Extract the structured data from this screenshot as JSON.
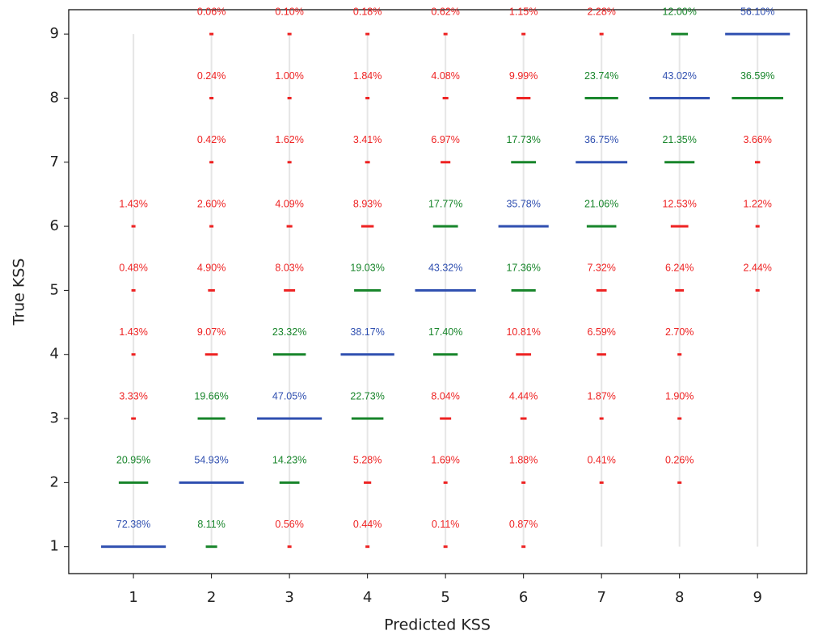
{
  "chart_data": {
    "type": "confusion-bars",
    "x_label": "Predicted KSS",
    "y_label": "True KSS",
    "xlim": [
      0.17,
      9.63
    ],
    "ylim": [
      0.58,
      9.38
    ],
    "xticks": [
      1,
      2,
      3,
      4,
      5,
      6,
      7,
      8,
      9
    ],
    "yticks": [
      1,
      2,
      3,
      4,
      5,
      6,
      7,
      8,
      9
    ],
    "y": [
      1,
      2,
      3,
      4,
      5,
      6,
      7,
      8,
      9
    ],
    "colors": {
      "diagonal": "#2f4fb0",
      "adjacent": "#17852a",
      "other": "#ee2222"
    },
    "guide_color": "#e6e6e6",
    "series": [
      {
        "x": 1,
        "values": [
          72.38,
          20.95,
          3.33,
          1.43,
          0.48,
          1.43,
          null,
          null,
          null
        ],
        "value_labels": [
          "72.38%",
          "20.95%",
          "3.33%",
          "1.43%",
          "0.48%",
          "1.43%",
          null,
          null,
          null
        ]
      },
      {
        "x": 2,
        "values": [
          8.11,
          54.93,
          19.66,
          9.07,
          4.9,
          2.6,
          0.42,
          0.24,
          0.06
        ],
        "value_labels": [
          "8.11%",
          "54.93%",
          "19.66%",
          "9.07%",
          "4.90%",
          "2.60%",
          "0.42%",
          "0.24%",
          "0.06%"
        ]
      },
      {
        "x": 3,
        "values": [
          0.56,
          14.23,
          47.05,
          23.32,
          8.03,
          4.09,
          1.62,
          1.0,
          0.1
        ],
        "value_labels": [
          "0.56%",
          "14.23%",
          "47.05%",
          "23.32%",
          "8.03%",
          "4.09%",
          "1.62%",
          "1.00%",
          "0.10%"
        ]
      },
      {
        "x": 4,
        "values": [
          0.44,
          5.28,
          22.73,
          38.17,
          19.03,
          8.93,
          3.41,
          1.84,
          0.18
        ],
        "value_labels": [
          "0.44%",
          "5.28%",
          "22.73%",
          "38.17%",
          "19.03%",
          "8.93%",
          "3.41%",
          "1.84%",
          "0.18%"
        ]
      },
      {
        "x": 5,
        "values": [
          0.11,
          1.69,
          8.04,
          17.4,
          43.32,
          17.77,
          6.97,
          4.08,
          0.62
        ],
        "value_labels": [
          "0.11%",
          "1.69%",
          "8.04%",
          "17.40%",
          "43.32%",
          "17.77%",
          "6.97%",
          "4.08%",
          "0.62%"
        ]
      },
      {
        "x": 6,
        "values": [
          0.87,
          1.88,
          4.44,
          10.81,
          17.36,
          35.78,
          17.73,
          9.99,
          1.15
        ],
        "value_labels": [
          "0.87%",
          "1.88%",
          "4.44%",
          "10.81%",
          "17.36%",
          "35.78%",
          "17.73%",
          "9.99%",
          "1.15%"
        ]
      },
      {
        "x": 7,
        "values": [
          null,
          0.41,
          1.87,
          6.59,
          7.32,
          21.06,
          36.75,
          23.74,
          2.28
        ],
        "value_labels": [
          null,
          "0.41%",
          "1.87%",
          "6.59%",
          "7.32%",
          "21.06%",
          "36.75%",
          "23.74%",
          "2.28%"
        ]
      },
      {
        "x": 8,
        "values": [
          null,
          0.26,
          1.9,
          2.7,
          6.24,
          12.53,
          21.35,
          43.02,
          12.0
        ],
        "value_labels": [
          null,
          "0.26%",
          "1.90%",
          "2.70%",
          "6.24%",
          "12.53%",
          "21.35%",
          "43.02%",
          "12.00%"
        ]
      },
      {
        "x": 9,
        "values": [
          null,
          null,
          null,
          null,
          2.44,
          1.22,
          3.66,
          36.59,
          56.1
        ],
        "value_labels": [
          null,
          null,
          null,
          null,
          "2.44%",
          "1.22%",
          "3.66%",
          "36.59%",
          "56.10%"
        ]
      }
    ]
  }
}
